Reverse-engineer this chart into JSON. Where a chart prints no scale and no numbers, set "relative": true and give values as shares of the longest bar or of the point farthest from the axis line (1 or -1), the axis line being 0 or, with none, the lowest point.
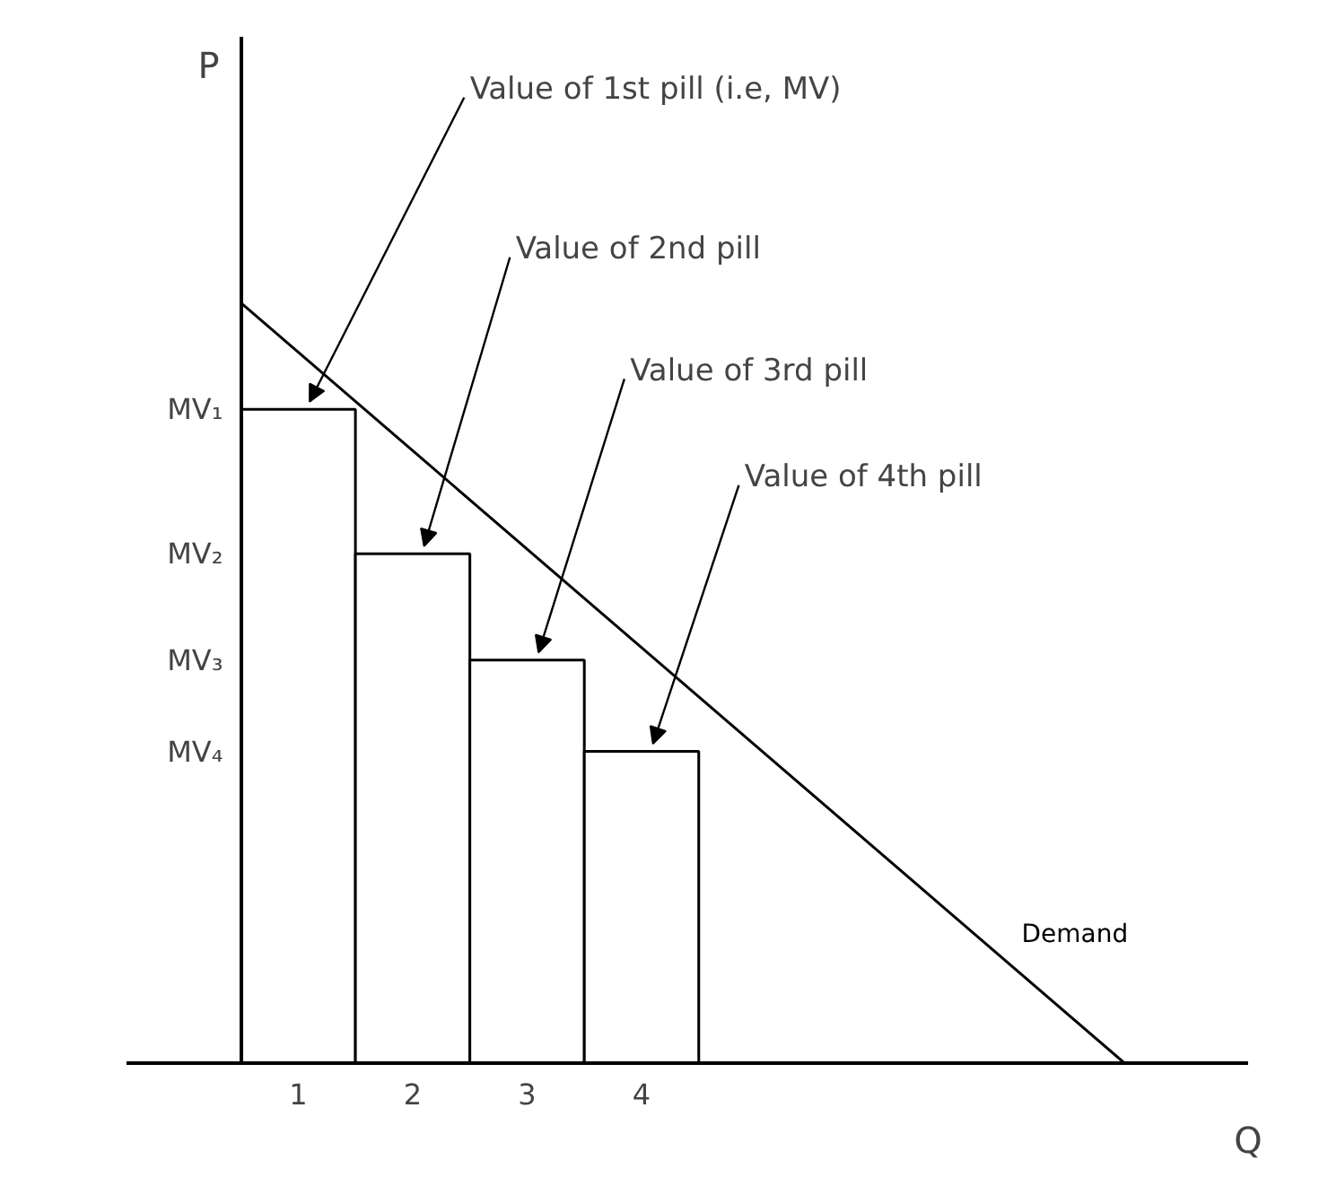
{
  "chart_data": {
    "type": "bar",
    "relative": true,
    "xlabel": "Q",
    "x": [
      0.5,
      1.5,
      2.5,
      3.5
    ],
    "xlim": [
      -1,
      8.8
    ],
    "xticks": [
      {
        "value": 0.5,
        "label": "1"
      },
      {
        "value": 1.5,
        "label": "2"
      },
      {
        "value": 2.5,
        "label": "3"
      },
      {
        "value": 3.5,
        "label": "4"
      }
    ],
    "series": [
      {
        "color": "#ffffff",
        "values": [
          0.86,
          0.67,
          0.53,
          0.41
        ]
      },
      {
        "type": "line",
        "name": "Demand",
        "color": "#000000",
        "x": [
          0,
          7.72
        ],
        "values": [
          1,
          0
        ]
      }
    ],
    "annotations": [
      {
        "text": "Value of 1st pill (i.e, MV)",
        "x": 0.5,
        "y": 0.86
      },
      {
        "text": "Value of 2nd pill",
        "x": 1.5,
        "y": 0.67
      },
      {
        "text": "Value of 3rd pill",
        "x": 2.5,
        "y": 0.53
      },
      {
        "text": "Value of 4th pill",
        "x": 3.5,
        "y": 0.41
      },
      "P",
      {
        "text": "MV₁",
        "x": 0,
        "y": 0.86
      },
      {
        "text": "MV₂",
        "x": 0,
        "y": 0.67
      },
      {
        "text": "MV₃",
        "x": 0,
        "y": 0.53
      },
      {
        "text": "MV₄",
        "x": 0,
        "y": 0.41
      }
    ],
    "grid": false,
    "legend": false
  }
}
